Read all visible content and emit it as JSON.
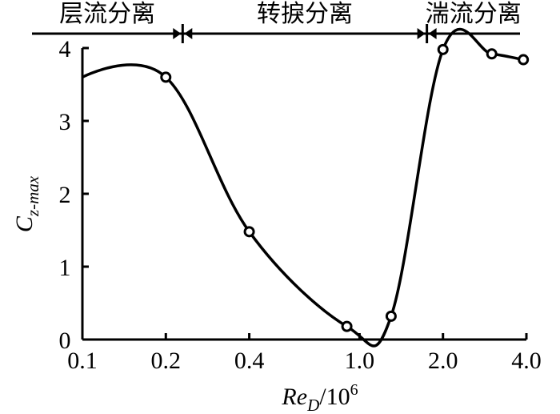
{
  "chart_data": {
    "type": "line",
    "xlabel_main": "Re",
    "xlabel_sub": "D",
    "xlabel_rest": "/10",
    "xlabel_sup": "6",
    "ylabel_main": "C",
    "ylabel_sub": "z-max",
    "x_scale": "log",
    "xlim": [
      0.1,
      4.0
    ],
    "ylim": [
      0,
      4
    ],
    "x_ticks": [
      0.1,
      0.2,
      0.4,
      1.0,
      2.0,
      4.0
    ],
    "x_tick_labels": [
      "0.1",
      "0.2",
      "0.4",
      "1.0",
      "2.0",
      "4.0"
    ],
    "y_ticks": [
      0,
      1,
      2,
      3,
      4
    ],
    "y_tick_labels": [
      "0",
      "1",
      "2",
      "3",
      "4"
    ],
    "grid": false,
    "series": [
      {
        "x": [
          0.1,
          0.2,
          0.4,
          0.9,
          1.3,
          2.0,
          3.0,
          3.9
        ],
        "y": [
          3.6,
          3.6,
          1.48,
          0.18,
          0.32,
          3.98,
          3.92,
          3.84
        ]
      }
    ],
    "markers": [
      {
        "x": 0.2,
        "y": 3.6
      },
      {
        "x": 0.4,
        "y": 1.48
      },
      {
        "x": 0.9,
        "y": 0.18
      },
      {
        "x": 1.3,
        "y": 0.32
      },
      {
        "x": 2.0,
        "y": 3.98
      },
      {
        "x": 3.0,
        "y": 3.92
      },
      {
        "x": 3.9,
        "y": 3.84
      }
    ],
    "regimes": [
      {
        "label": "层流分离",
        "x_start": 0.1,
        "x_end": 0.23
      },
      {
        "label": "转捩分离",
        "x_start": 0.23,
        "x_end": 1.75
      },
      {
        "label": "湍流分离",
        "x_start": 1.75,
        "x_end": 4.0
      }
    ]
  }
}
